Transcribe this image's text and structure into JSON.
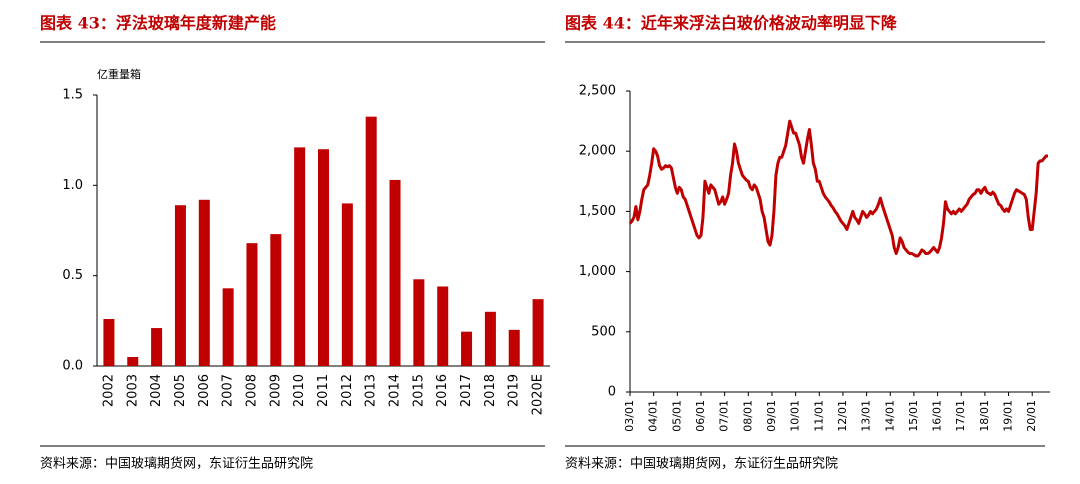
{
  "chart_data": [
    {
      "type": "bar",
      "title": "图表 43：浮法玻璃年度新建产能",
      "source": "资料来源：中国玻璃期货网，东证衍生品研究院",
      "ylabel": "亿重量箱",
      "color": "#c00000",
      "categories": [
        "2002",
        "2003",
        "2004",
        "2005",
        "2006",
        "2007",
        "2008",
        "2009",
        "2010",
        "2011",
        "2012",
        "2013",
        "2014",
        "2015",
        "2016",
        "2017",
        "2018",
        "2019",
        "2020E"
      ],
      "values": [
        0.26,
        0.05,
        0.21,
        0.89,
        0.92,
        0.43,
        0.68,
        0.73,
        1.21,
        1.2,
        0.9,
        1.38,
        1.03,
        0.48,
        0.44,
        0.19,
        0.3,
        0.2,
        0.37
      ],
      "ylim": [
        0,
        1.5
      ],
      "yticks": [
        {
          "value": 0,
          "label": "0.0"
        },
        0.5,
        {
          "value": 1,
          "label": "1.0"
        },
        1.5
      ]
    },
    {
      "type": "line",
      "title": "图表 44：近年来浮法白玻价格波动率明显下降",
      "source": "资料来源：中国玻璃期货网，东证衍生品研究院",
      "color": "#c00000",
      "categories": [
        "03/01",
        null,
        null,
        null,
        null,
        null,
        null,
        null,
        null,
        null,
        null,
        null,
        "04/01",
        null,
        null,
        null,
        null,
        null,
        null,
        null,
        null,
        null,
        null,
        null,
        "05/01",
        null,
        null,
        null,
        null,
        null,
        null,
        null,
        null,
        null,
        null,
        null,
        "06/01",
        null,
        null,
        null,
        null,
        null,
        null,
        null,
        null,
        null,
        null,
        null,
        "07/01",
        null,
        null,
        null,
        null,
        null,
        null,
        null,
        null,
        null,
        null,
        null,
        "08/01",
        null,
        null,
        null,
        null,
        null,
        null,
        null,
        null,
        null,
        null,
        null,
        "09/01",
        null,
        null,
        null,
        null,
        null,
        null,
        null,
        null,
        null,
        null,
        null,
        "10/01",
        null,
        null,
        null,
        null,
        null,
        null,
        null,
        null,
        null,
        null,
        null,
        "11/01",
        null,
        null,
        null,
        null,
        null,
        null,
        null,
        null,
        null,
        null,
        null,
        "12/01",
        null,
        null,
        null,
        null,
        null,
        null,
        null,
        null,
        null,
        null,
        null,
        "13/01",
        null,
        null,
        null,
        null,
        null,
        null,
        null,
        null,
        null,
        null,
        null,
        "14/01",
        null,
        null,
        null,
        null,
        null,
        null,
        null,
        null,
        null,
        null,
        null,
        "15/01",
        null,
        null,
        null,
        null,
        null,
        null,
        null,
        null,
        null,
        null,
        null,
        "16/01",
        null,
        null,
        null,
        null,
        null,
        null,
        null,
        null,
        null,
        null,
        null,
        "17/01",
        null,
        null,
        null,
        null,
        null,
        null,
        null,
        null,
        null,
        null,
        null,
        "18/01",
        null,
        null,
        null,
        null,
        null,
        null,
        null,
        null,
        null,
        null,
        null,
        "19/01",
        null,
        null,
        null,
        null,
        null,
        null,
        null,
        null,
        null,
        null,
        null,
        "20/01",
        null,
        null,
        null,
        null,
        null,
        null,
        null,
        null
      ],
      "values": [
        1400,
        1420,
        1450,
        1540,
        1430,
        1500,
        1600,
        1680,
        1700,
        1720,
        1800,
        1900,
        2020,
        2000,
        1960,
        1880,
        1850,
        1860,
        1880,
        1870,
        1880,
        1860,
        1780,
        1700,
        1650,
        1700,
        1680,
        1620,
        1600,
        1550,
        1500,
        1450,
        1400,
        1350,
        1300,
        1280,
        1300,
        1450,
        1750,
        1700,
        1650,
        1720,
        1700,
        1680,
        1620,
        1560,
        1580,
        1620,
        1560,
        1600,
        1650,
        1800,
        1900,
        2060,
        2000,
        1900,
        1850,
        1800,
        1780,
        1760,
        1750,
        1700,
        1680,
        1720,
        1700,
        1650,
        1600,
        1500,
        1450,
        1350,
        1250,
        1220,
        1300,
        1500,
        1800,
        1900,
        1950,
        1950,
        2000,
        2050,
        2150,
        2250,
        2200,
        2150,
        2150,
        2100,
        2050,
        1950,
        1900,
        2000,
        2100,
        2180,
        2050,
        1900,
        1850,
        1750,
        1750,
        1700,
        1650,
        1620,
        1600,
        1580,
        1550,
        1530,
        1500,
        1480,
        1450,
        1420,
        1400,
        1380,
        1350,
        1400,
        1450,
        1500,
        1450,
        1430,
        1400,
        1450,
        1500,
        1480,
        1450,
        1470,
        1500,
        1480,
        1500,
        1520,
        1560,
        1610,
        1550,
        1500,
        1450,
        1400,
        1350,
        1300,
        1200,
        1150,
        1200,
        1280,
        1250,
        1200,
        1180,
        1160,
        1150,
        1150,
        1140,
        1130,
        1130,
        1150,
        1180,
        1170,
        1150,
        1150,
        1160,
        1180,
        1200,
        1180,
        1160,
        1200,
        1280,
        1400,
        1580,
        1520,
        1500,
        1480,
        1500,
        1480,
        1500,
        1520,
        1500,
        1520,
        1540,
        1560,
        1600,
        1620,
        1640,
        1650,
        1680,
        1680,
        1650,
        1680,
        1700,
        1660,
        1650,
        1640,
        1660,
        1640,
        1600,
        1560,
        1550,
        1520,
        1500,
        1520,
        1500,
        1550,
        1600,
        1650,
        1680,
        1670,
        1660,
        1650,
        1640,
        1600,
        1450,
        1350,
        1350,
        1500,
        1650,
        1900,
        1920,
        1920,
        1940,
        1960,
        1960
      ],
      "ylim": [
        0,
        2500
      ],
      "yticks": [
        0,
        500,
        {
          "value": 1000,
          "label": "1,000"
        },
        {
          "value": 1500,
          "label": "1,500"
        },
        {
          "value": 2000,
          "label": "2,000"
        },
        {
          "value": 2500,
          "label": "2,500"
        }
      ]
    }
  ]
}
